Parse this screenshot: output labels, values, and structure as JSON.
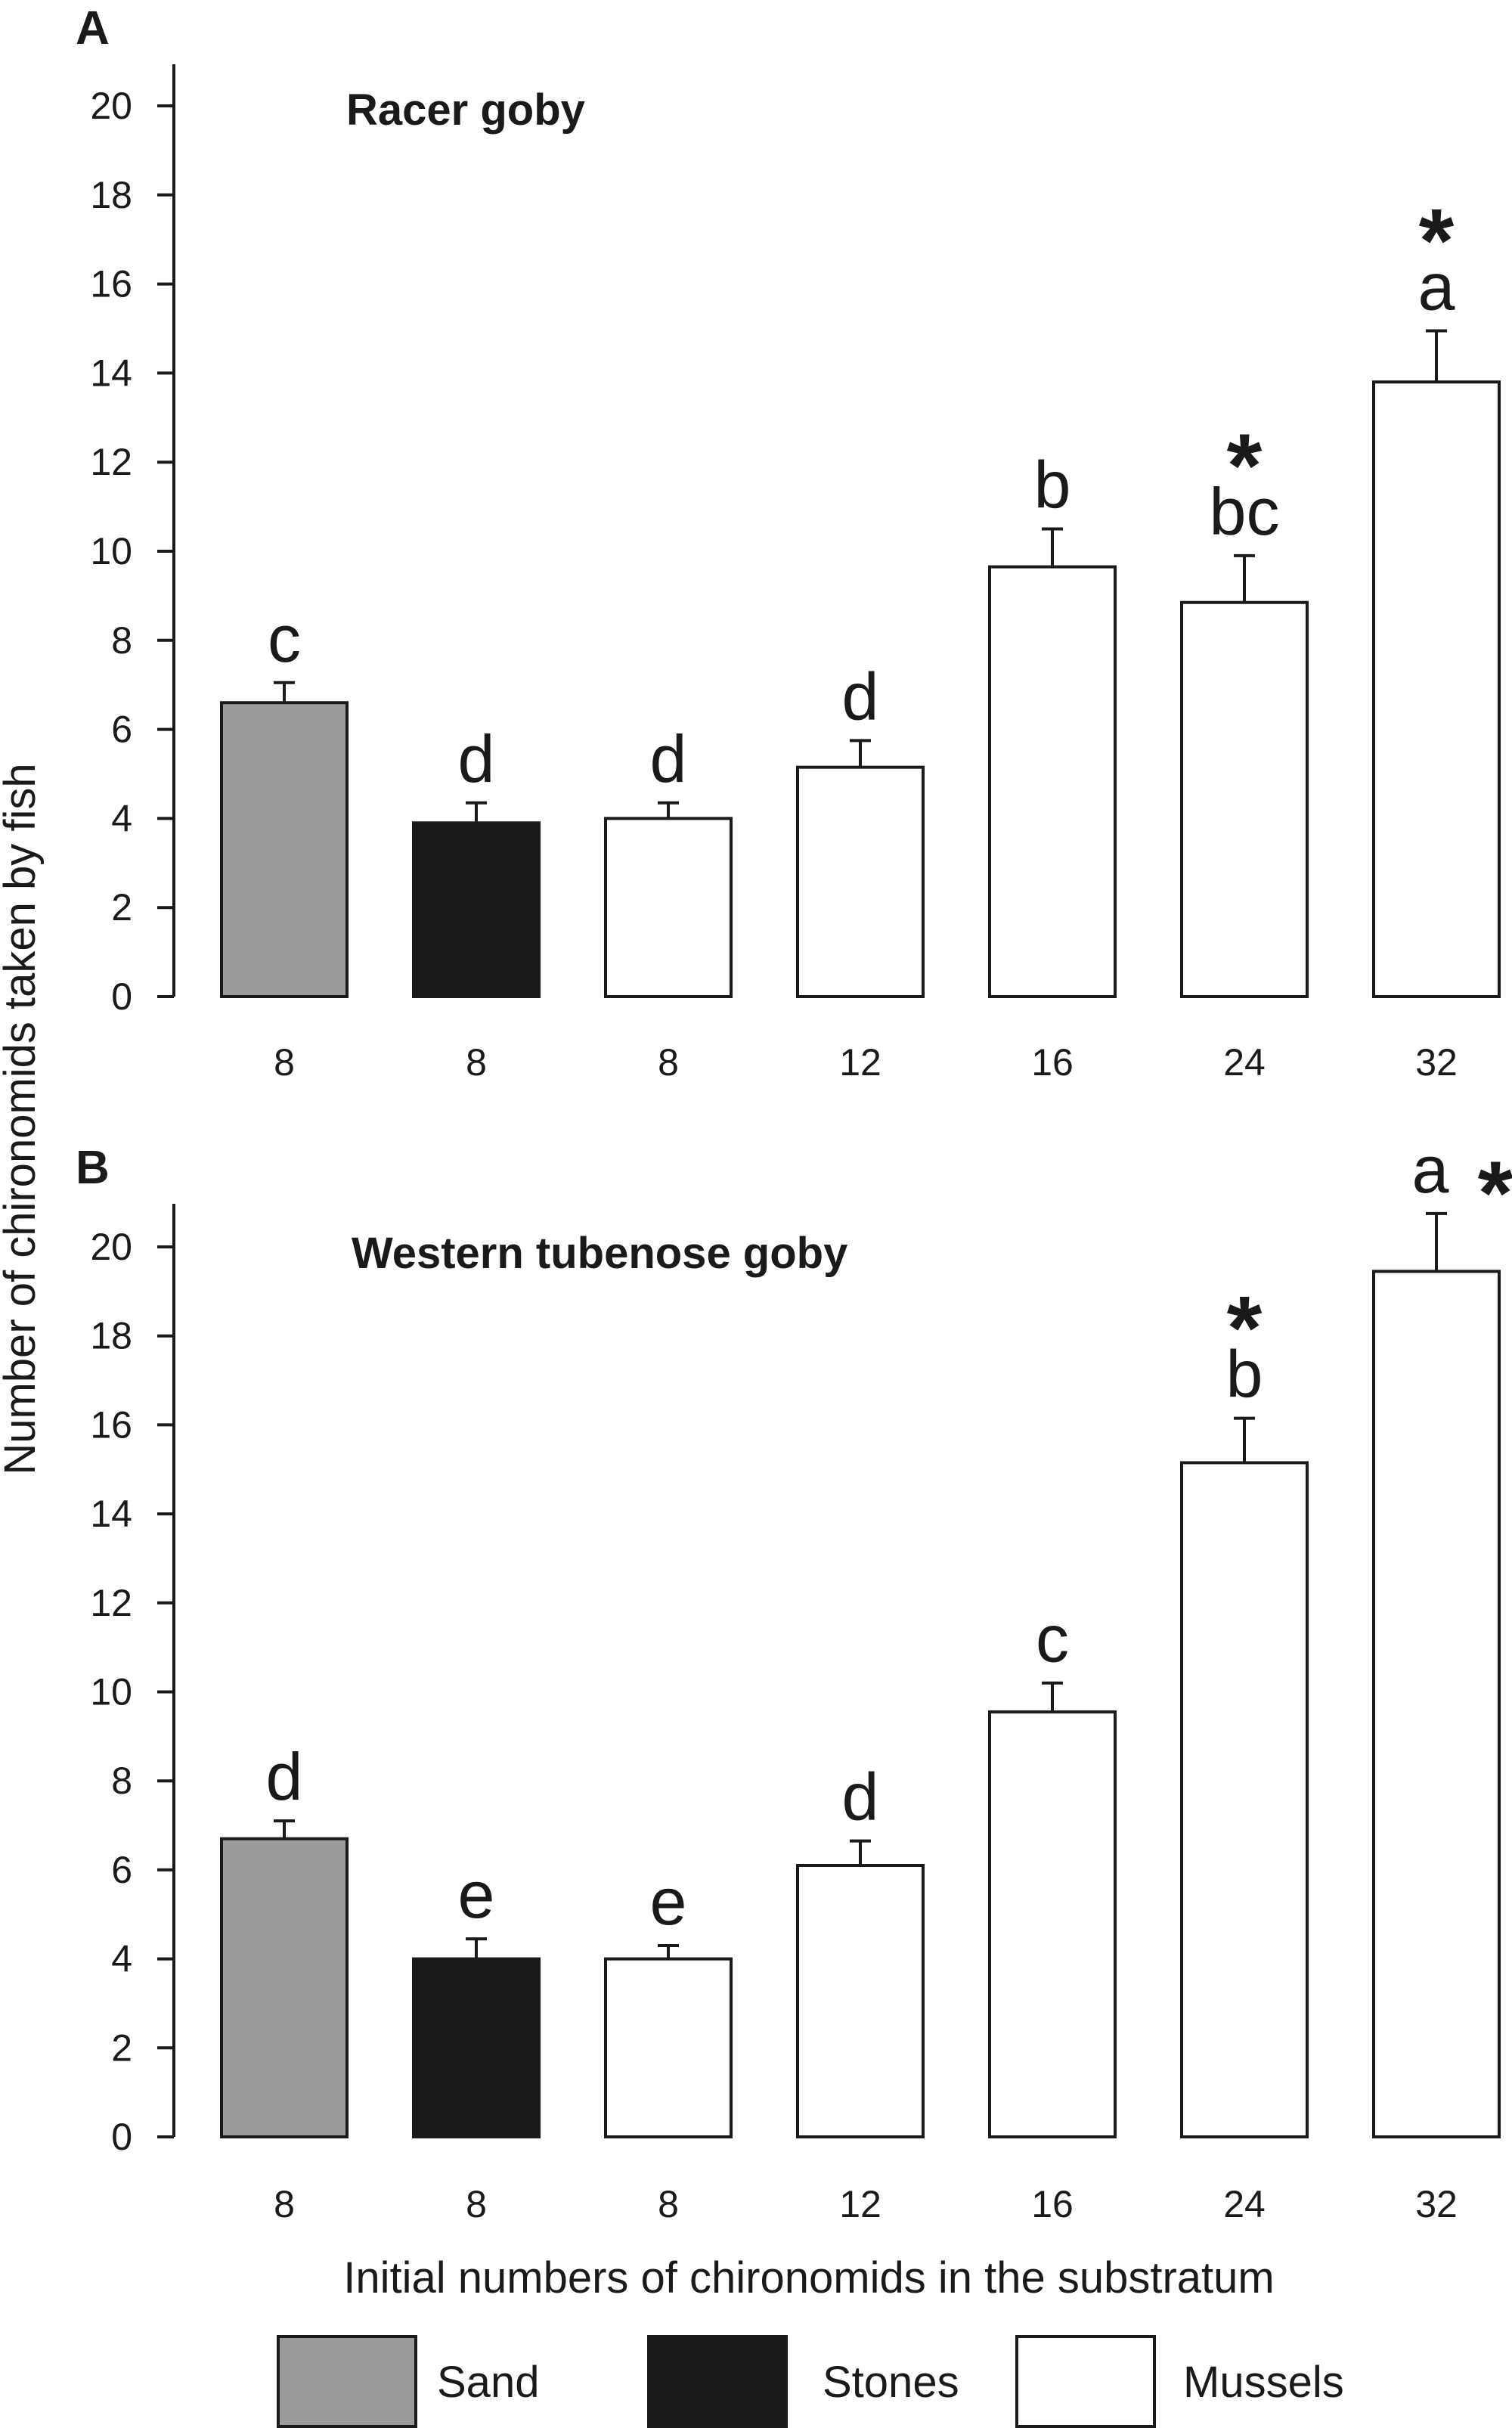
{
  "chart_data": [
    {
      "type": "bar",
      "panel": "A",
      "title": "Racer goby",
      "categories": [
        "8",
        "8",
        "8",
        "12",
        "16",
        "24",
        "32"
      ],
      "substratum": [
        "Sand",
        "Stones",
        "Mussels",
        "Mussels",
        "Mussels",
        "Mussels",
        "Mussels"
      ],
      "values": [
        6.6,
        3.9,
        4.0,
        5.15,
        9.65,
        8.85,
        13.8
      ],
      "errors": [
        0.45,
        0.45,
        0.35,
        0.6,
        0.85,
        1.05,
        1.15
      ],
      "letters": [
        "c",
        "d",
        "d",
        "d",
        "b",
        "bc",
        "a"
      ],
      "stars": [
        false,
        false,
        false,
        false,
        false,
        true,
        true
      ],
      "ylim": [
        0,
        20
      ],
      "yticks": [
        "0",
        "2",
        "4",
        "6",
        "8",
        "10",
        "12",
        "14",
        "16",
        "18",
        "20"
      ]
    },
    {
      "type": "bar",
      "panel": "B",
      "title": "Western tubenose goby",
      "categories": [
        "8",
        "8",
        "8",
        "12",
        "16",
        "24",
        "32"
      ],
      "substratum": [
        "Sand",
        "Stones",
        "Mussels",
        "Mussels",
        "Mussels",
        "Mussels",
        "Mussels"
      ],
      "values": [
        6.7,
        4.0,
        4.0,
        6.1,
        9.55,
        15.15,
        19.45
      ],
      "errors": [
        0.4,
        0.45,
        0.3,
        0.55,
        0.65,
        1.0,
        1.3
      ],
      "letters": [
        "d",
        "e",
        "e",
        "d",
        "c",
        "b",
        "a"
      ],
      "stars": [
        false,
        false,
        false,
        false,
        false,
        true,
        true
      ],
      "ylim": [
        0,
        20
      ],
      "yticks": [
        "0",
        "2",
        "4",
        "6",
        "8",
        "10",
        "12",
        "14",
        "16",
        "18",
        "20"
      ]
    }
  ],
  "ylabel": "Number of chironomids taken by fish",
  "xlabel": "Initial numbers of chironomids in the substratum",
  "star_symbol": "*",
  "legend": [
    {
      "label": "Sand",
      "color": "#9b9b9b"
    },
    {
      "label": "Stones",
      "color": "#1a1a1a"
    },
    {
      "label": "Mussels",
      "color": "#ffffff"
    }
  ],
  "colors": {
    "axis": "#1a1a1a",
    "Sand": "#9b9b9b",
    "Stones": "#1a1a1a",
    "Mussels": "#ffffff"
  }
}
